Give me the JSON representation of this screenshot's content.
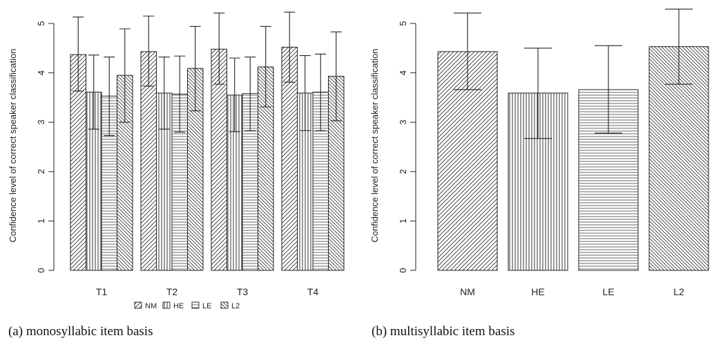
{
  "captions": {
    "a": "(a) monosyllabic item basis",
    "b": "(b) multisyllabic item basis"
  },
  "chart_data": [
    {
      "type": "bar",
      "grouped": true,
      "title": "",
      "xlabel": "",
      "ylabel": "Confidence level of correct speaker classification",
      "ylim": [
        0,
        5
      ],
      "yticks": [
        0,
        1,
        2,
        3,
        4,
        5
      ],
      "grid": false,
      "legend_position": "bottom-center",
      "categories": [
        "T1",
        "T2",
        "T3",
        "T4"
      ],
      "series": [
        {
          "name": "NM",
          "pattern": "diag-right",
          "values": [
            4.37,
            4.43,
            4.48,
            4.52
          ],
          "err_low": [
            3.63,
            3.73,
            3.77,
            3.81
          ],
          "err_high": [
            5.13,
            5.15,
            5.21,
            5.23
          ]
        },
        {
          "name": "HE",
          "pattern": "vertical",
          "values": [
            3.61,
            3.59,
            3.55,
            3.59
          ],
          "err_low": [
            2.86,
            2.86,
            2.81,
            2.83
          ],
          "err_high": [
            4.36,
            4.32,
            4.3,
            4.35
          ]
        },
        {
          "name": "LE",
          "pattern": "horizontal",
          "values": [
            3.53,
            3.57,
            3.58,
            3.61
          ],
          "err_low": [
            2.73,
            2.8,
            2.83,
            2.83
          ],
          "err_high": [
            4.32,
            4.34,
            4.32,
            4.38
          ]
        },
        {
          "name": "L2",
          "pattern": "diag-left",
          "values": [
            3.95,
            4.09,
            4.12,
            3.93
          ],
          "err_low": [
            3.0,
            3.23,
            3.31,
            3.03
          ],
          "err_high": [
            4.89,
            4.94,
            4.94,
            4.83
          ]
        }
      ]
    },
    {
      "type": "bar",
      "title": "",
      "xlabel": "",
      "ylabel": "Confidence level of correct speaker classification",
      "ylim": [
        0,
        5
      ],
      "yticks": [
        0,
        1,
        2,
        3,
        4,
        5
      ],
      "grid": false,
      "categories": [
        "NM",
        "HE",
        "LE",
        "L2"
      ],
      "patterns": [
        "diag-right",
        "vertical",
        "horizontal",
        "diag-left"
      ],
      "values": [
        4.43,
        3.59,
        3.66,
        4.53
      ],
      "err_low": [
        3.66,
        2.67,
        2.78,
        3.77
      ],
      "err_high": [
        5.21,
        4.5,
        4.55,
        5.29
      ]
    }
  ]
}
